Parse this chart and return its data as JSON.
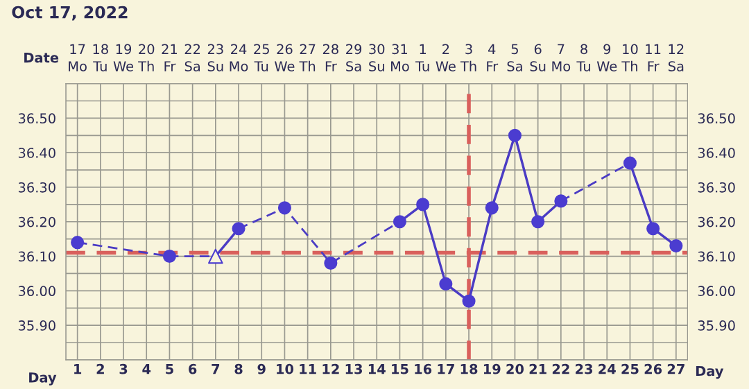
{
  "chart_data": {
    "type": "line",
    "title": "Oct 17, 2022",
    "xlabel": "Day",
    "categories": [
      "1",
      "2",
      "3",
      "4",
      "5",
      "6",
      "7",
      "8",
      "9",
      "10",
      "11",
      "12",
      "13",
      "14",
      "15",
      "16",
      "17",
      "18",
      "19",
      "20",
      "21",
      "22",
      "23",
      "24",
      "25",
      "26",
      "27"
    ],
    "annotations": [
      "Date",
      "17\nMo",
      "18\nTu",
      "19\nWe",
      "20\nTh",
      "21\nFr",
      "22\nSa",
      "23\nSu",
      "24\nMo",
      "25\nTu",
      "26\nWe",
      "27\nTh",
      "28\nFr",
      "29\nSa",
      "30\nSu",
      "31\nMo",
      "1\nTu",
      "2\nWe",
      "3\nTh",
      "4\nFr",
      "5\nSa",
      "6\nSu",
      "7\nMo",
      "8\nTu",
      "9\nWe",
      "10\nTh",
      "11\nFr",
      "12\nSa"
    ],
    "ylim": [
      35.8,
      36.6
    ],
    "yticks": [
      {
        "value": 35.85,
        "label": null
      },
      {
        "value": 35.9,
        "label": "35.90"
      },
      {
        "value": 35.95,
        "label": null
      },
      {
        "value": 36.0,
        "label": "36.00"
      },
      {
        "value": 36.05,
        "label": null
      },
      {
        "value": 36.1,
        "label": "36.10"
      },
      {
        "value": 36.15,
        "label": null
      },
      {
        "value": 36.2,
        "label": "36.20"
      },
      {
        "value": 36.25,
        "label": null
      },
      {
        "value": 36.3,
        "label": "36.30"
      },
      {
        "value": 36.35,
        "label": null
      },
      {
        "value": 36.4,
        "label": "36.40"
      },
      {
        "value": 36.45,
        "label": null
      },
      {
        "value": 36.5,
        "label": "36.50"
      },
      {
        "value": 36.55,
        "label": null
      }
    ],
    "y2lim": [
      35.8,
      36.6
    ],
    "y2ticks": [
      {
        "value": 35.85,
        "label": null
      },
      {
        "value": 35.9,
        "label": "35.90"
      },
      {
        "value": 35.95,
        "label": null
      },
      {
        "value": 36.0,
        "label": "36.00"
      },
      {
        "value": 36.05,
        "label": null
      },
      {
        "value": 36.1,
        "label": "36.10"
      },
      {
        "value": 36.15,
        "label": null
      },
      {
        "value": 36.2,
        "label": "36.20"
      },
      {
        "value": 36.25,
        "label": null
      },
      {
        "value": 36.3,
        "label": "36.30"
      },
      {
        "value": 36.35,
        "label": null
      },
      {
        "value": 36.4,
        "label": "36.40"
      },
      {
        "value": 36.45,
        "label": null
      },
      {
        "value": 36.5,
        "label": "36.50"
      },
      {
        "value": 36.55,
        "label": null
      }
    ],
    "grid": true,
    "series": [
      {
        "line_style": "dashed",
        "color": "#4b3cc4",
        "values": [
          36.14,
          null,
          null,
          null,
          36.1,
          null,
          36.1,
          null,
          null,
          null,
          null,
          null,
          null,
          null,
          null,
          null,
          null,
          null,
          null,
          null,
          null,
          null,
          null,
          null,
          null,
          null,
          null
        ]
      },
      {
        "line_style": "dashed",
        "color": "#4b3cc4",
        "values": [
          null,
          null,
          null,
          null,
          null,
          null,
          null,
          36.18,
          null,
          36.24,
          null,
          36.08,
          null,
          null,
          36.2,
          null,
          null,
          null,
          null,
          null,
          null,
          null,
          null,
          null,
          null,
          null,
          null
        ]
      },
      {
        "line_style": "dashed",
        "color": "#4b3cc4",
        "values": [
          null,
          null,
          null,
          null,
          null,
          null,
          null,
          null,
          null,
          null,
          null,
          null,
          null,
          null,
          null,
          null,
          null,
          null,
          null,
          null,
          null,
          36.26,
          null,
          null,
          36.37,
          null,
          null
        ]
      },
      {
        "line_style": "solid",
        "color": "#4b3cc4",
        "values": [
          null,
          null,
          null,
          null,
          null,
          null,
          36.1,
          36.18,
          null,
          null,
          null,
          null,
          null,
          null,
          null,
          null,
          null,
          null,
          null,
          null,
          null,
          null,
          null,
          null,
          null,
          null,
          null
        ]
      },
      {
        "line_style": "solid",
        "color": "#4b3cc4",
        "values": [
          null,
          null,
          null,
          null,
          null,
          null,
          null,
          null,
          null,
          null,
          null,
          null,
          null,
          null,
          36.2,
          36.25,
          36.02,
          35.97,
          36.24,
          36.45,
          36.2,
          36.26,
          null,
          null,
          null,
          null,
          null
        ]
      },
      {
        "line_style": "solid",
        "color": "#4b3cc4",
        "values": [
          null,
          null,
          null,
          null,
          null,
          null,
          null,
          null,
          null,
          null,
          null,
          null,
          null,
          null,
          null,
          null,
          null,
          null,
          null,
          null,
          null,
          null,
          null,
          null,
          36.37,
          36.18,
          36.13
        ]
      },
      {
        "type": "scatter",
        "marker": "circle",
        "color": "#4b3cd0",
        "values": [
          36.14,
          null,
          null,
          null,
          36.1,
          null,
          null,
          36.18,
          null,
          36.24,
          null,
          36.08,
          null,
          null,
          36.2,
          36.25,
          36.02,
          35.97,
          36.24,
          36.45,
          36.2,
          36.26,
          null,
          null,
          36.37,
          36.18,
          36.13
        ]
      },
      {
        "type": "scatter",
        "marker": "triangle",
        "color": "#4b3cd0",
        "values": [
          null,
          null,
          null,
          null,
          null,
          null,
          36.1,
          null,
          null,
          null,
          null,
          null,
          null,
          null,
          null,
          null,
          null,
          null,
          null,
          null,
          null,
          null,
          null,
          null,
          null,
          null,
          null
        ]
      }
    ],
    "ref_lines": [
      {
        "axis": "y",
        "value": 36.11,
        "color": "#d9605c",
        "line_style": "dashed"
      },
      {
        "axis": "x",
        "value": "18",
        "color": "#d9605c",
        "line_style": "dashed"
      }
    ]
  }
}
